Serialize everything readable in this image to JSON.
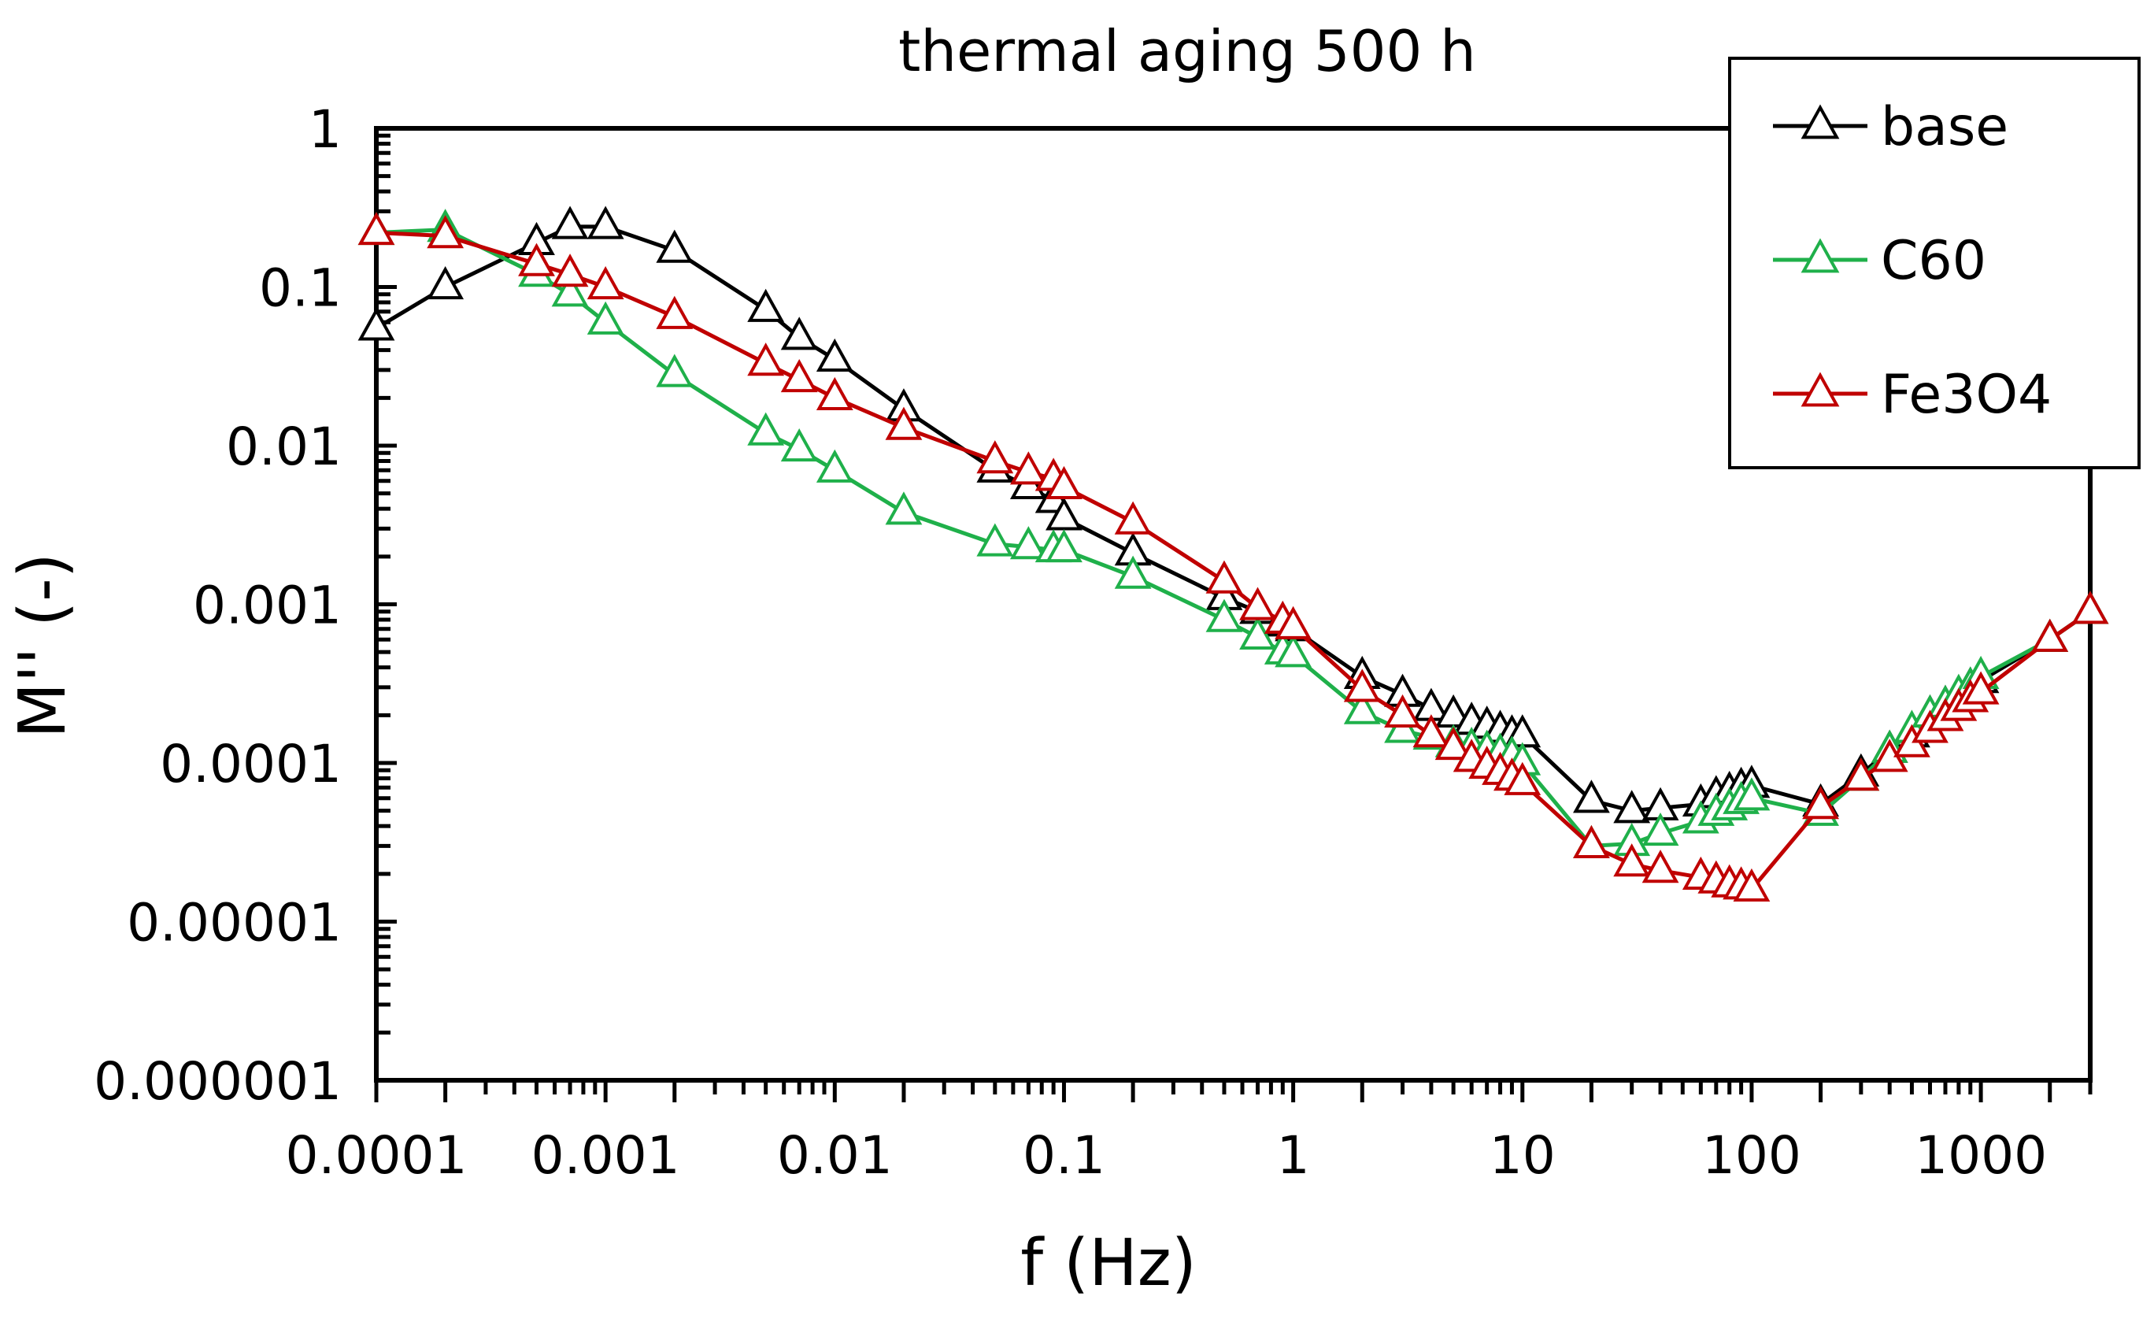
{
  "chart_data": {
    "type": "line",
    "title": "thermal aging 500 h",
    "xlabel": "f (Hz)",
    "ylabel": "M'' (-)",
    "xscale": "log",
    "yscale": "log",
    "xlim": [
      0.0001,
      3000
    ],
    "ylim": [
      1e-06,
      1
    ],
    "x_tick_values": [
      0.0001,
      0.001,
      0.01,
      0.1,
      1,
      10,
      100,
      1000
    ],
    "x_tick_labels": [
      "0.0001",
      "0.001",
      "0.01",
      "0.1",
      "1",
      "10",
      "100",
      "1000"
    ],
    "y_tick_values": [
      1,
      0.1,
      0.01,
      0.001,
      0.0001,
      1e-05,
      1e-06
    ],
    "y_tick_labels": [
      "1",
      "0.1",
      "0.01",
      "0.001",
      "0.0001",
      "0.00001",
      "0.000001"
    ],
    "grid": false,
    "legend_position": "top-right",
    "series": [
      {
        "name": "base",
        "color": "#000000",
        "marker": "open-triangle",
        "x": [
          0.0001,
          0.0002,
          0.0005,
          0.0007,
          0.001,
          0.002,
          0.005,
          0.007,
          0.01,
          0.02,
          0.05,
          0.07,
          0.09,
          0.1,
          0.2,
          0.5,
          0.7,
          0.9,
          1,
          2,
          3,
          4,
          5,
          6,
          7,
          8,
          9,
          10,
          20,
          30,
          40,
          60,
          70,
          80,
          90,
          100,
          200,
          300,
          400,
          500,
          600,
          700,
          800,
          900,
          1000,
          2000,
          3000
        ],
        "y": [
          0.055,
          0.1,
          0.19,
          0.24,
          0.24,
          0.17,
          0.072,
          0.048,
          0.035,
          0.017,
          0.007,
          0.0055,
          0.0045,
          0.0035,
          0.0021,
          0.0011,
          0.0009,
          0.00075,
          0.0007,
          0.00035,
          0.00027,
          0.00022,
          0.0002,
          0.00018,
          0.00017,
          0.00016,
          0.00015,
          0.00015,
          5.8e-05,
          5e-05,
          5.2e-05,
          5.5e-05,
          6.2e-05,
          6.6e-05,
          7e-05,
          7.2e-05,
          5.5e-05,
          8.5e-05,
          0.00012,
          0.00015,
          0.0002,
          0.00023,
          0.00026,
          0.0003,
          0.00033,
          0.0006,
          0.0009
        ]
      },
      {
        "name": "C60",
        "color": "#1fb04a",
        "marker": "open-triangle",
        "x": [
          0.0001,
          0.0002,
          0.0005,
          0.0007,
          0.001,
          0.002,
          0.005,
          0.007,
          0.01,
          0.02,
          0.05,
          0.07,
          0.09,
          0.1,
          0.2,
          0.5,
          0.7,
          0.9,
          1,
          2,
          3,
          4,
          5,
          6,
          7,
          8,
          9,
          10,
          20,
          30,
          40,
          60,
          70,
          80,
          90,
          100,
          200,
          300,
          400,
          500,
          600,
          700,
          800,
          900,
          1000,
          2000,
          3000
        ],
        "y": [
          0.22,
          0.23,
          0.12,
          0.09,
          0.06,
          0.028,
          0.012,
          0.0095,
          0.007,
          0.0038,
          0.0024,
          0.0023,
          0.0022,
          0.0022,
          0.0015,
          0.0008,
          0.00062,
          0.0005,
          0.00048,
          0.00021,
          0.00016,
          0.000145,
          0.00013,
          0.000125,
          0.00012,
          0.000115,
          0.00011,
          0.0001,
          3e-05,
          3.1e-05,
          3.6e-05,
          4.3e-05,
          4.8e-05,
          5.2e-05,
          5.7e-05,
          6e-05,
          4.8e-05,
          8e-05,
          0.00012,
          0.00016,
          0.0002,
          0.00023,
          0.00027,
          0.0003,
          0.00035,
          0.0006,
          0.0009
        ]
      },
      {
        "name": "Fe3O4",
        "color": "#c00000",
        "marker": "open-triangle",
        "x": [
          0.0001,
          0.0002,
          0.0005,
          0.0007,
          0.001,
          0.002,
          0.005,
          0.007,
          0.01,
          0.02,
          0.05,
          0.07,
          0.09,
          0.1,
          0.2,
          0.5,
          0.7,
          0.9,
          1,
          2,
          3,
          4,
          5,
          6,
          7,
          8,
          9,
          10,
          20,
          30,
          40,
          60,
          70,
          80,
          90,
          100,
          200,
          300,
          400,
          500,
          600,
          700,
          800,
          900,
          1000,
          2000,
          3000
        ],
        "y": [
          0.22,
          0.21,
          0.14,
          0.12,
          0.1,
          0.065,
          0.033,
          0.026,
          0.02,
          0.013,
          0.008,
          0.0068,
          0.0062,
          0.0055,
          0.0033,
          0.0014,
          0.00095,
          0.00078,
          0.00072,
          0.00029,
          0.0002,
          0.00015,
          0.000125,
          0.000105,
          9.5e-05,
          8.7e-05,
          8e-05,
          7.5e-05,
          3e-05,
          2.3e-05,
          2.1e-05,
          1.9e-05,
          1.8e-05,
          1.7e-05,
          1.65e-05,
          1.6e-05,
          5.3e-05,
          8e-05,
          0.000105,
          0.00013,
          0.00016,
          0.00019,
          0.00022,
          0.00025,
          0.00028,
          0.0006,
          0.0009
        ]
      }
    ]
  }
}
